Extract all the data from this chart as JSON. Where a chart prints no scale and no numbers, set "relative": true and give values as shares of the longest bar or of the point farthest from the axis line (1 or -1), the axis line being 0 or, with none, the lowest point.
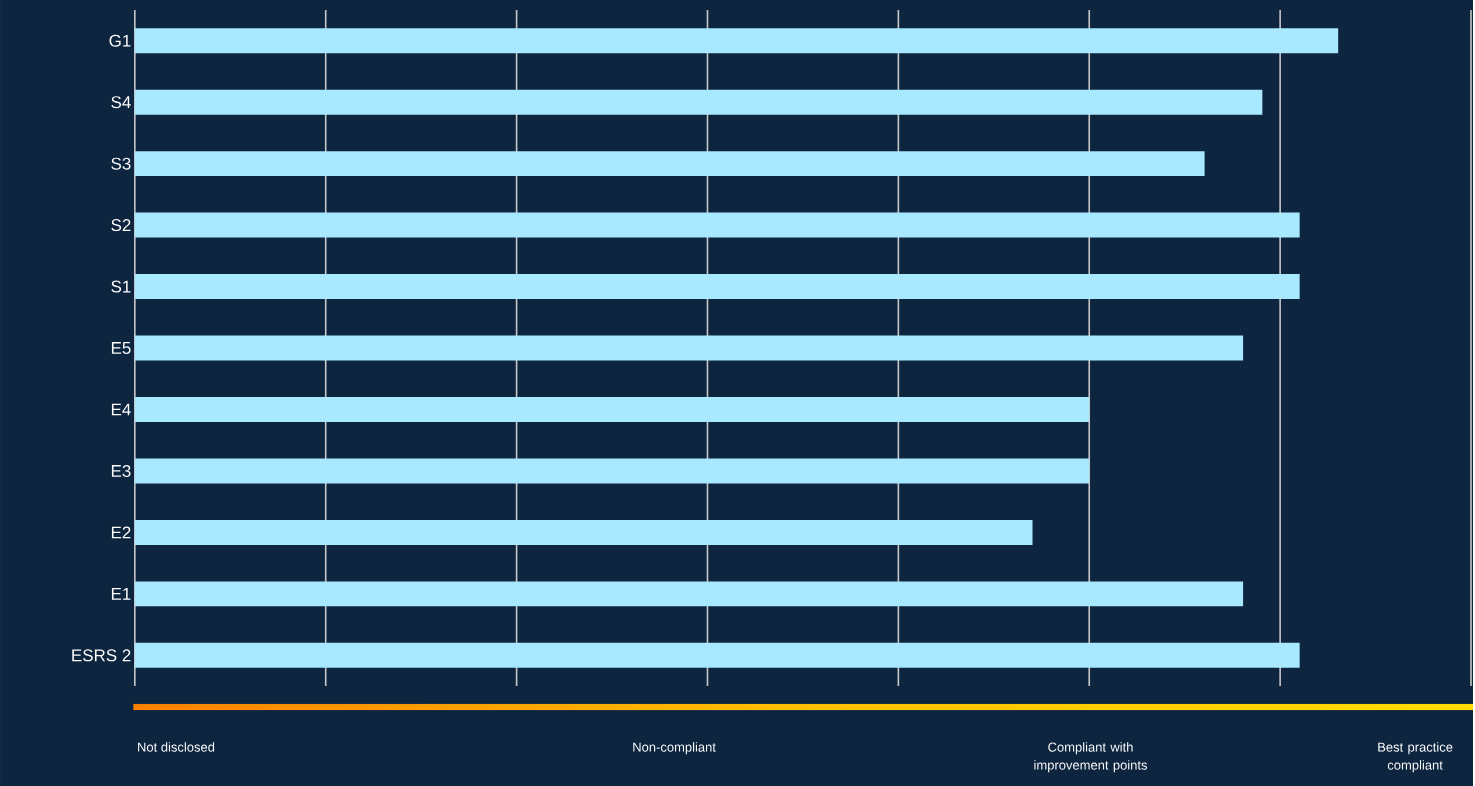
{
  "chart_data": {
    "type": "bar",
    "orientation": "horizontal",
    "relative": true,
    "grid": "x",
    "color": "#a9e9ff",
    "categories": [
      "G1",
      "S4",
      "S3",
      "S2",
      "S1",
      "E5",
      "E4",
      "E3",
      "E2",
      "E1",
      "ESRS 2"
    ],
    "values": [
      1,
      0.937,
      0.889,
      0.968,
      0.968,
      0.921,
      0.793,
      0.793,
      0.746,
      0.921,
      0.968
    ],
    "annotations": [
      "Not disclosed",
      "Non-compliant",
      "Compliant with improvement points",
      "Best practice compliant"
    ]
  }
}
